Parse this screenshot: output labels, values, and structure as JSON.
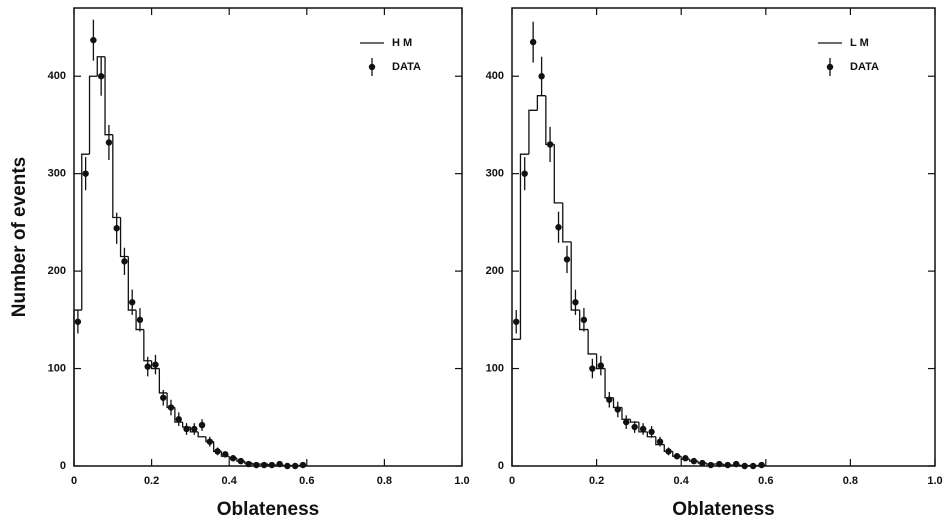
{
  "chart_data": [
    {
      "type": "histogram",
      "x_label": "Oblateness",
      "y_label": "Number of events",
      "xlim": [
        0,
        1
      ],
      "ylim": [
        0,
        470
      ],
      "xticks": [
        0,
        0.2,
        0.4,
        0.6,
        0.8,
        {
          "value": 1,
          "label": "1.0"
        }
      ],
      "yticks": [
        0,
        100,
        200,
        300,
        400
      ],
      "color": "#111111",
      "bins": [
        0,
        0.02,
        0.04,
        0.06,
        0.08,
        0.1,
        0.12,
        0.14,
        0.16,
        0.18,
        0.2,
        0.22,
        0.24,
        0.26,
        0.28,
        0.3,
        0.32,
        0.34,
        0.36,
        0.38,
        0.4,
        0.42,
        0.44,
        0.46,
        0.48,
        0.5,
        0.52,
        0.54,
        0.56,
        0.58,
        0.6
      ],
      "histogram": {
        "name": "H M",
        "values": [
          160,
          320,
          400,
          420,
          340,
          255,
          215,
          160,
          140,
          108,
          100,
          75,
          60,
          45,
          40,
          35,
          30,
          25,
          15,
          10,
          8,
          5,
          3,
          2,
          2,
          1,
          1,
          0.5,
          0.5,
          0.5
        ]
      },
      "points": {
        "name": "DATA",
        "x": [
          0.01,
          0.03,
          0.05,
          0.07,
          0.09,
          0.11,
          0.13,
          0.15,
          0.17,
          0.19,
          0.21,
          0.23,
          0.25,
          0.27,
          0.29,
          0.31,
          0.33,
          0.35,
          0.37,
          0.39,
          0.41,
          0.43,
          0.45,
          0.47,
          0.49,
          0.51,
          0.53,
          0.55,
          0.57,
          0.59
        ],
        "values": [
          148,
          300,
          437,
          400,
          332,
          244,
          210,
          168,
          150,
          102,
          104,
          70,
          60,
          48,
          38,
          38,
          42,
          25,
          15,
          12,
          8,
          5,
          2,
          1,
          1,
          1,
          2,
          0,
          0,
          1
        ],
        "errors": [
          12,
          17,
          21,
          20,
          18,
          16,
          14,
          13,
          12,
          10,
          10,
          8,
          8,
          7,
          6,
          6,
          6,
          5,
          4,
          3,
          3,
          2,
          2,
          1,
          1,
          1,
          1,
          1,
          1,
          1
        ]
      }
    },
    {
      "type": "histogram",
      "x_label": "Oblateness",
      "xlim": [
        0,
        1
      ],
      "ylim": [
        0,
        470
      ],
      "xticks": [
        0,
        0.2,
        0.4,
        0.6,
        0.8,
        {
          "value": 1,
          "label": "1.0"
        }
      ],
      "yticks": [
        0,
        100,
        200,
        300,
        400
      ],
      "color": "#111111",
      "bins": [
        0,
        0.02,
        0.04,
        0.06,
        0.08,
        0.1,
        0.12,
        0.14,
        0.16,
        0.18,
        0.2,
        0.22,
        0.24,
        0.26,
        0.28,
        0.3,
        0.32,
        0.34,
        0.36,
        0.38,
        0.4,
        0.42,
        0.44,
        0.46,
        0.48,
        0.5,
        0.52,
        0.54,
        0.56,
        0.58,
        0.6
      ],
      "histogram": {
        "name": "L M",
        "values": [
          130,
          320,
          365,
          380,
          330,
          270,
          230,
          160,
          140,
          115,
          100,
          70,
          60,
          48,
          45,
          35,
          30,
          22,
          15,
          10,
          7,
          5,
          3,
          2,
          2,
          1,
          1,
          0.5,
          0.5,
          0.5
        ]
      },
      "points": {
        "name": "DATA",
        "x": [
          0.01,
          0.03,
          0.05,
          0.07,
          0.09,
          0.11,
          0.13,
          0.15,
          0.17,
          0.19,
          0.21,
          0.23,
          0.25,
          0.27,
          0.29,
          0.31,
          0.33,
          0.35,
          0.37,
          0.39,
          0.41,
          0.43,
          0.45,
          0.47,
          0.49,
          0.51,
          0.53,
          0.55,
          0.57,
          0.59
        ],
        "values": [
          148,
          300,
          435,
          400,
          330,
          245,
          212,
          168,
          150,
          100,
          103,
          68,
          58,
          45,
          40,
          38,
          35,
          25,
          15,
          10,
          8,
          5,
          3,
          1,
          2,
          1,
          2,
          0,
          0,
          1
        ],
        "errors": [
          12,
          17,
          21,
          20,
          18,
          16,
          14,
          13,
          12,
          10,
          10,
          8,
          8,
          7,
          6,
          6,
          6,
          5,
          4,
          3,
          3,
          2,
          2,
          1,
          1,
          1,
          1,
          1,
          1,
          1
        ]
      }
    }
  ]
}
